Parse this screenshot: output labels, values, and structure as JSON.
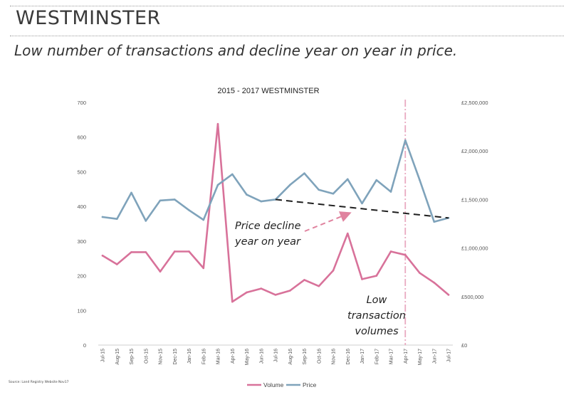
{
  "slide": {
    "title": "WESTMINSTER",
    "subtitle": "Low number of transactions and decline year on year in price.",
    "source": "Source: Land Registry Website Nov17"
  },
  "colors": {
    "volume": "#d8729a",
    "price": "#7fa3bb",
    "trend": "#1f1f1f",
    "arrow": "#e0839f",
    "marker": "#e9a9c0"
  },
  "chart_data": {
    "type": "line",
    "title": "2015 - 2017 WESTMINSTER",
    "categories": [
      "Jul-15",
      "Aug-15",
      "Sep-15",
      "Oct-15",
      "Nov-15",
      "Dec-15",
      "Jan-16",
      "Feb-16",
      "Mar-16",
      "Apr-16",
      "May-16",
      "Jun-16",
      "Jul-16",
      "Aug-16",
      "Sep-16",
      "Oct-16",
      "Nov-16",
      "Dec-16",
      "Jan-17",
      "Feb-17",
      "Mar-17",
      "Apr-17",
      "May-17",
      "Jun-17",
      "Jul-17"
    ],
    "y_left": {
      "range": [
        0,
        700
      ],
      "ticks": [
        "0",
        "100",
        "200",
        "300",
        "400",
        "500",
        "600",
        "700"
      ]
    },
    "y_right": {
      "range": [
        0,
        2500000
      ],
      "ticks": [
        "£0",
        "£500,000",
        "£1,000,000",
        "£1,500,000",
        "£2,000,000",
        "£2,500,000"
      ]
    },
    "series": [
      {
        "name": "Volume",
        "axis": "left",
        "values": [
          258,
          233,
          268,
          268,
          212,
          270,
          270,
          222,
          638,
          125,
          152,
          163,
          145,
          157,
          188,
          170,
          215,
          322,
          190,
          200,
          270,
          260,
          208,
          180,
          145
        ]
      },
      {
        "name": "Price",
        "axis": "right",
        "values": [
          1320000,
          1300000,
          1570000,
          1280000,
          1490000,
          1500000,
          1390000,
          1290000,
          1650000,
          1760000,
          1550000,
          1480000,
          1500000,
          1650000,
          1770000,
          1600000,
          1560000,
          1710000,
          1460000,
          1700000,
          1580000,
          2110000,
          1700000,
          1270000,
          1310000
        ]
      }
    ],
    "trendline": {
      "label": "Price decline year on year",
      "from": {
        "x": "Jul-16",
        "y": 1500000
      },
      "to": {
        "x": "Jul-17",
        "y": 1310000
      }
    },
    "annotations": {
      "price_decline": [
        "Price decline",
        "year on year"
      ],
      "low_volumes": [
        "Low",
        "transaction",
        "volumes"
      ]
    },
    "marker": {
      "x": "Apr-17"
    },
    "legend": {
      "position": "bottom",
      "items": [
        "Volume",
        "Price"
      ]
    }
  }
}
